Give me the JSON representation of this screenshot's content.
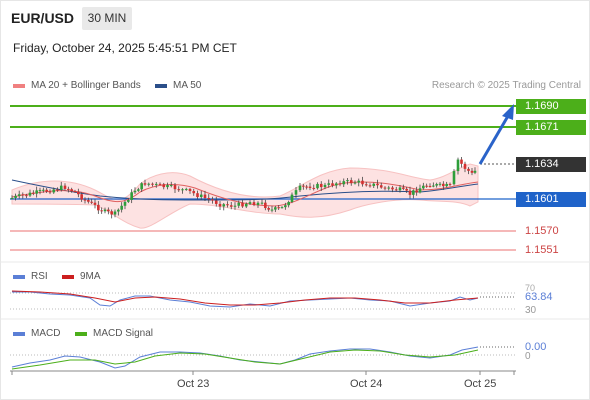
{
  "header": {
    "pair": "EUR/USD",
    "timeframe": "30 MIN",
    "datetime": "Friday, October 24, 2025 5:45:51 PM CET"
  },
  "main_legend": {
    "ma20_bb": "MA 20 + Bollinger Bands",
    "ma50": "MA 50",
    "research": "Research © 2025 Trading Central",
    "colors": {
      "ma20": "#f08080",
      "ma50": "#2b4f8a"
    }
  },
  "levels": {
    "r2": "1.1690",
    "r1": "1.1671",
    "current": "1.1634",
    "pivot": "1.1601",
    "s1": "1.1570",
    "s2": "1.1551",
    "colors": {
      "resistance": "#4caf1a",
      "current": "#333333",
      "pivot": "#1f63c9",
      "support": "#cc3333"
    }
  },
  "rsi_panel": {
    "rsi_label": "RSI",
    "ma_label": "9MA",
    "value": "63.84",
    "level_low": "30",
    "level_high": "70",
    "colors": {
      "rsi": "#5b7fd6",
      "ma": "#cc1f1f"
    }
  },
  "macd_panel": {
    "macd_label": "MACD",
    "signal_label": "MACD Signal",
    "value": "0.00",
    "level_zero": "0",
    "colors": {
      "macd": "#5b7fd6",
      "signal": "#4caf1a"
    }
  },
  "x_axis": {
    "ticks": [
      "Oct 23",
      "Oct 24",
      "Oct 25"
    ]
  }
}
